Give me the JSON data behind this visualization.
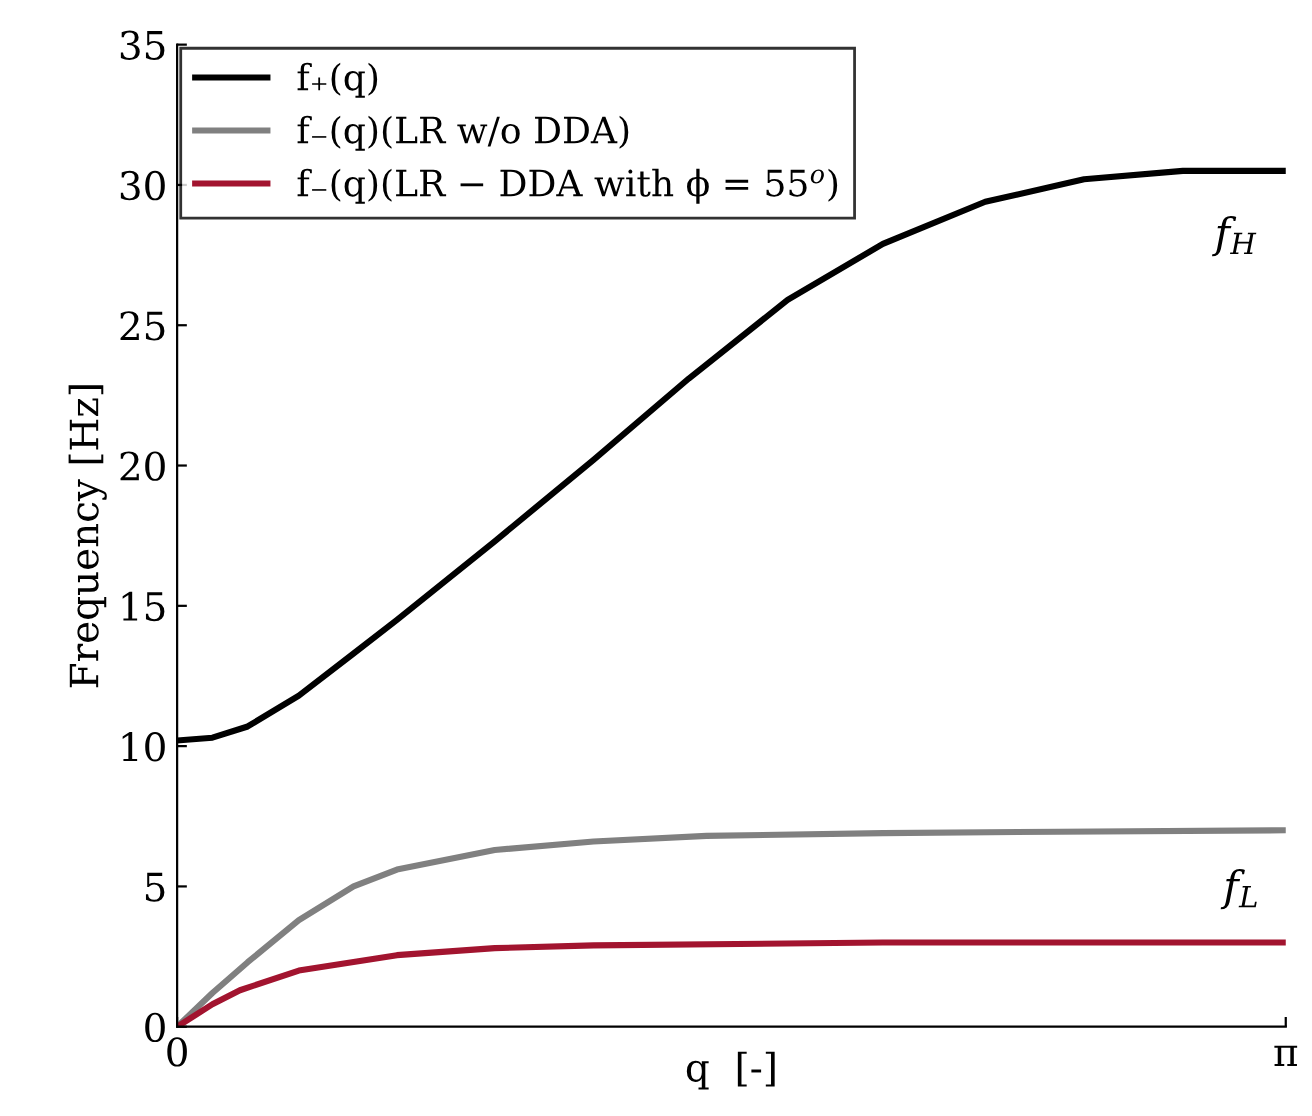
{
  "chart_data": {
    "type": "line",
    "xlabel": "q  [-]",
    "ylabel": "Frequency [Hz]",
    "xlim": [
      0,
      3.1416
    ],
    "xticks": [
      0,
      {
        "value": 3.1416,
        "label": "π"
      }
    ],
    "ylim": [
      0,
      35
    ],
    "yticks": [
      0,
      5,
      10,
      15,
      20,
      25,
      30,
      35
    ],
    "legend": "top left",
    "grid": false,
    "marker": "none",
    "line_style": "solid",
    "series": [
      {
        "name": "f₊(q)",
        "color": "#000000",
        "x": [
          0,
          0.1,
          0.2,
          0.345,
          0.5,
          0.623,
          0.9,
          1.18,
          1.45,
          1.73,
          2.0,
          2.29,
          2.57,
          2.85,
          3.1416
        ],
        "values": [
          10.2,
          10.3,
          10.7,
          11.8,
          13.3,
          14.5,
          17.3,
          20.2,
          23.1,
          25.9,
          27.9,
          29.4,
          30.2,
          30.5,
          30.5
        ]
      },
      {
        "name": "f₋(q)(LR w/o DDA)",
        "color": "#808080",
        "x": [
          0,
          0.1,
          0.2,
          0.345,
          0.5,
          0.623,
          0.9,
          1.18,
          1.5,
          2.0,
          2.5,
          3.1416
        ],
        "values": [
          0,
          1.2,
          2.3,
          3.8,
          5.0,
          5.6,
          6.3,
          6.6,
          6.8,
          6.9,
          6.95,
          7.0
        ]
      },
      {
        "name": "f₋(q)(LR − DDA with ϕ = 55$^{o}$)",
        "color": "#a2142f",
        "x": [
          0,
          0.1,
          0.178,
          0.345,
          0.623,
          0.9,
          1.18,
          2.0,
          3.1416
        ],
        "values": [
          0,
          0.8,
          1.3,
          2.0,
          2.55,
          2.8,
          2.9,
          3.0,
          3.0
        ]
      }
    ],
    "annotations": [
      "f$_{H}$",
      "f$_{L}$"
    ]
  }
}
